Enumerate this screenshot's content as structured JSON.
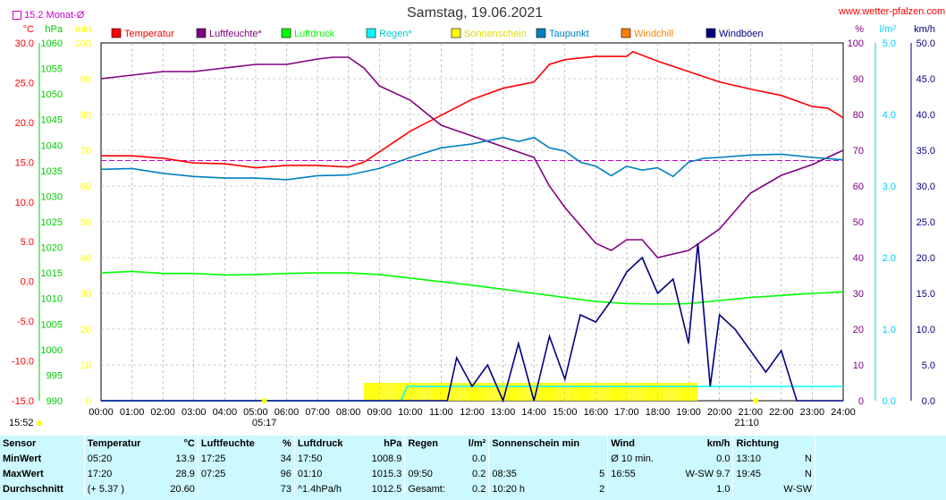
{
  "header": {
    "date": "Samstag, 19.06.2021",
    "website": "www.wetter-pfalzen.com",
    "monthly_avg": "15.2 Monat-Ø"
  },
  "units": {
    "temp": "°C",
    "pressure": "hPa",
    "minutes": "min",
    "percent": "%",
    "rain": "l/m²",
    "wind": "km/h"
  },
  "legend": [
    {
      "label": "Temperatur",
      "color": "#ff0000"
    },
    {
      "label": "Luftfeuchte*",
      "color": "#800080"
    },
    {
      "label": "Luftdruck",
      "color": "#00ff00"
    },
    {
      "label": "Regen*",
      "color": "#00ffff"
    },
    {
      "label": "Sonnenschein",
      "color": "#ffff00"
    },
    {
      "label": "Taupunkt",
      "color": "#0080c0"
    },
    {
      "label": "Windchill",
      "color": "#ff8000"
    },
    {
      "label": "Windböen",
      "color": "#000080"
    }
  ],
  "markers": {
    "sunrise": "05:17",
    "sunset": "21:10",
    "now": "15:52"
  },
  "chart_data": {
    "type": "line",
    "title": "Samstag, 19.06.2021",
    "x_ticks": [
      "00:00",
      "01:00",
      "02:00",
      "03:00",
      "04:00",
      "05:00",
      "06:00",
      "07:00",
      "08:00",
      "09:00",
      "10:00",
      "11:00",
      "12:00",
      "13:00",
      "14:00",
      "15:00",
      "16:00",
      "17:00",
      "18:00",
      "19:00",
      "20:00",
      "21:00",
      "22:00",
      "23:00",
      "24:00"
    ],
    "axes": {
      "temp": {
        "label": "°C",
        "range": [
          -15,
          30
        ],
        "ticks": [
          "30.0",
          "25.0",
          "20.0",
          "15.0",
          "10.0",
          "5.0",
          "0.0",
          "-5.0",
          "-10.0",
          "-15.0"
        ]
      },
      "pressure": {
        "label": "hPa",
        "range": [
          990,
          1060
        ],
        "ticks": [
          "1060",
          "1055",
          "1050",
          "1045",
          "1040",
          "1035",
          "1030",
          "1025",
          "1020",
          "1015",
          "1010",
          "1005",
          "1000",
          "995",
          "990"
        ]
      },
      "minutes": {
        "label": "min",
        "range": [
          0,
          100
        ],
        "ticks": [
          "100",
          "90",
          "80",
          "70",
          "60",
          "50",
          "40",
          "30",
          "20",
          "10",
          "0"
        ]
      },
      "percent": {
        "label": "%",
        "range": [
          0,
          100
        ],
        "ticks": [
          "100",
          "90",
          "80",
          "70",
          "60",
          "50",
          "40",
          "30",
          "20",
          "10",
          "0"
        ]
      },
      "rain": {
        "label": "l/m²",
        "range": [
          0,
          5
        ],
        "ticks": [
          "5.0",
          "4.0",
          "3.0",
          "2.0",
          "1.0",
          "0.0"
        ]
      },
      "wind": {
        "label": "km/h",
        "range": [
          0,
          50
        ],
        "ticks": [
          "50.0",
          "45.0",
          "40.0",
          "35.0",
          "30.0",
          "25.0",
          "20.0",
          "15.0",
          "10.0",
          "5.0",
          "0.0"
        ]
      }
    },
    "monthly_avg_temp": 15.2,
    "series": [
      {
        "name": "Temperatur",
        "axis": "temp",
        "color": "#ff0000",
        "x": [
          0,
          1,
          2,
          3,
          4,
          5,
          6,
          7,
          8,
          8.5,
          9,
          10,
          11,
          12,
          13,
          14,
          14.5,
          15,
          16,
          17,
          17.2,
          18,
          19,
          20,
          21,
          22,
          23,
          23.5,
          24
        ],
        "y": [
          15.8,
          15.8,
          15.5,
          14.9,
          14.8,
          14.3,
          14.6,
          14.6,
          14.4,
          15.0,
          16.3,
          18.9,
          20.9,
          22.9,
          24.3,
          25.1,
          27.3,
          27.9,
          28.3,
          28.3,
          28.9,
          27.7,
          26.4,
          25.1,
          24.2,
          23.4,
          22.0,
          21.8,
          20.6
        ]
      },
      {
        "name": "Luftfeuchte*",
        "axis": "percent",
        "color": "#800080",
        "x": [
          0,
          1,
          2,
          3,
          4,
          5,
          6,
          7,
          7.5,
          8,
          8.5,
          9,
          10,
          11,
          12,
          13,
          14,
          14.5,
          15,
          16,
          16.5,
          17,
          17.5,
          18,
          19,
          20,
          21,
          22,
          23,
          24
        ],
        "y": [
          90,
          91,
          92,
          92,
          93,
          94,
          94,
          95.5,
          96,
          96,
          93,
          88,
          84,
          77,
          74,
          71,
          68,
          60,
          54,
          44,
          42,
          45,
          45,
          40,
          42,
          48,
          58,
          63,
          66,
          70
        ]
      },
      {
        "name": "Luftdruck",
        "axis": "pressure",
        "color": "#00ff00",
        "x": [
          0,
          1,
          2,
          3,
          4,
          5,
          6,
          7,
          8,
          9,
          10,
          11,
          12,
          13,
          14,
          15,
          16,
          17,
          18,
          19,
          20,
          21,
          22,
          23,
          24
        ],
        "y": [
          1015,
          1015.3,
          1014.9,
          1014.9,
          1014.6,
          1014.7,
          1014.9,
          1015.0,
          1015.0,
          1014.7,
          1014.0,
          1013.3,
          1012.6,
          1011.8,
          1011.0,
          1010.2,
          1009.4,
          1009.0,
          1008.9,
          1009.0,
          1009.6,
          1010.2,
          1010.6,
          1011.0,
          1011.3
        ]
      },
      {
        "name": "Taupunkt",
        "axis": "temp",
        "color": "#0080c0",
        "x": [
          0,
          1,
          2,
          3,
          4,
          5,
          6,
          7,
          8,
          9,
          10,
          11,
          12,
          13,
          13.5,
          14,
          14.5,
          15,
          15.5,
          16,
          16.5,
          17,
          17.5,
          18,
          18.5,
          19,
          19.5,
          20,
          21,
          22,
          23,
          24
        ],
        "y": [
          14.1,
          14.2,
          13.6,
          13.2,
          13.0,
          13.0,
          12.8,
          13.3,
          13.4,
          14.2,
          15.6,
          16.8,
          17.3,
          18.1,
          17.6,
          18.1,
          16.8,
          16.4,
          15.0,
          14.5,
          13.3,
          14.5,
          14.0,
          14.3,
          13.2,
          15.0,
          15.5,
          15.6,
          15.9,
          16.0,
          15.6,
          15.3
        ]
      },
      {
        "name": "Regen*",
        "axis": "rain",
        "color": "#00ffff",
        "x": [
          0,
          9.7,
          9.9,
          10.5,
          24
        ],
        "y": [
          0,
          0,
          0.2,
          0.2,
          0.2
        ]
      },
      {
        "name": "Windböen",
        "axis": "wind",
        "color": "#000080",
        "x": [
          0,
          11.2,
          11.5,
          12,
          12.5,
          13,
          13.5,
          14,
          14.5,
          15,
          15.5,
          16,
          16.5,
          17,
          17.5,
          18,
          18.5,
          19,
          19.3,
          19.7,
          20,
          20.5,
          21,
          21.5,
          22,
          22.5,
          24
        ],
        "y": [
          0,
          0,
          6,
          2,
          5,
          0,
          8,
          0,
          9,
          3,
          12,
          11,
          14,
          18,
          20,
          15,
          17,
          8,
          22,
          2,
          12,
          10,
          7,
          4,
          7,
          0,
          0
        ]
      },
      {
        "name": "Sonnenschein",
        "axis": "minutes",
        "color": "#ffff00",
        "type": "bar",
        "x_start": 8.5,
        "x_end": 19.3,
        "value": 5
      }
    ]
  },
  "stats": {
    "headers": [
      "Sensor",
      "Temperatur",
      "°C",
      "Luftfeuchte",
      "%",
      "Luftdruck",
      "hPa",
      "Regen",
      "l/m²",
      "Sonnenschein min",
      "Wind",
      "km/h",
      "Richtung"
    ],
    "rows": [
      {
        "label": "MinWert",
        "t_time": "05:20",
        "t_val": "13.9",
        "h_time": "17:25",
        "h_val": "34",
        "p_time": "17:50",
        "p_val": "1008.9",
        "r_time": "",
        "r_val": "0.0",
        "s_time": "",
        "s_val": "",
        "w_time": "Ø 10 min.",
        "w_val": "0.0",
        "d_time": "13:10",
        "d_val": "N"
      },
      {
        "label": "MaxWert",
        "t_time": "17:20",
        "t_val": "28.9",
        "h_time": "07:25",
        "h_val": "96",
        "p_time": "01:10",
        "p_val": "1015.3",
        "r_time": "09:50",
        "r_val": "0.2",
        "s_time": "08:35",
        "s_val": "5",
        "w_time": "16:55",
        "w_val": "W-SW 9.7",
        "d_time": "19:45",
        "d_val": "N"
      },
      {
        "label": "Durchschnitt",
        "t_time": "(+ 5.37 )",
        "t_val": "20.60",
        "h_time": "",
        "h_val": "73",
        "p_time": "^1.4hPa/h",
        "p_val": "1012.5",
        "r_time": "Gesamt:",
        "r_val": "0.2",
        "s_time": "10:20 h",
        "s_val": "2",
        "w_time": "",
        "w_val": "1.0",
        "d_time": "",
        "d_val": "W-SW"
      }
    ]
  }
}
